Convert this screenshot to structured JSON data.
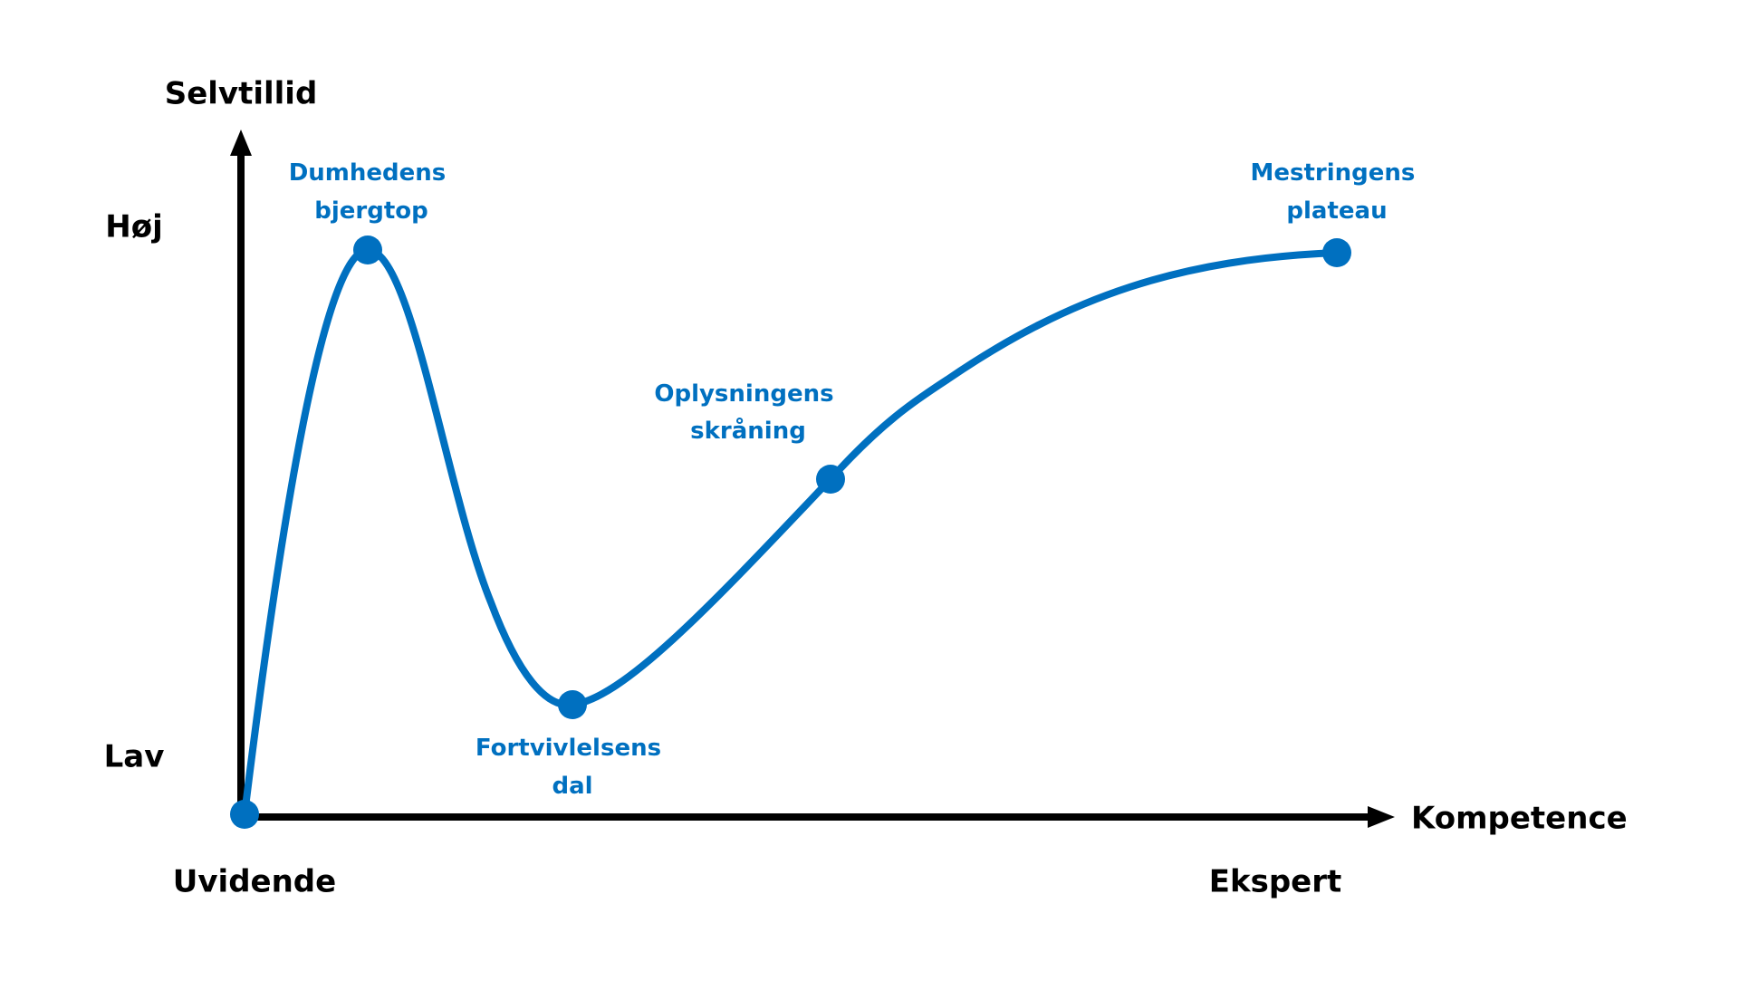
{
  "axes": {
    "y_title": "Selvtillid",
    "x_title": "Kompetence",
    "y_high": "Høj",
    "y_low": "Lav",
    "x_low": "Uvidende",
    "x_high": "Ekspert"
  },
  "stages": [
    {
      "lines": [
        "Dumhedens",
        "bjergtop"
      ]
    },
    {
      "lines": [
        "Fortvivlelsens",
        "dal"
      ]
    },
    {
      "lines": [
        "Oplysningens",
        "skråning"
      ]
    },
    {
      "lines": [
        "Mestringens",
        "plateau"
      ]
    }
  ]
}
